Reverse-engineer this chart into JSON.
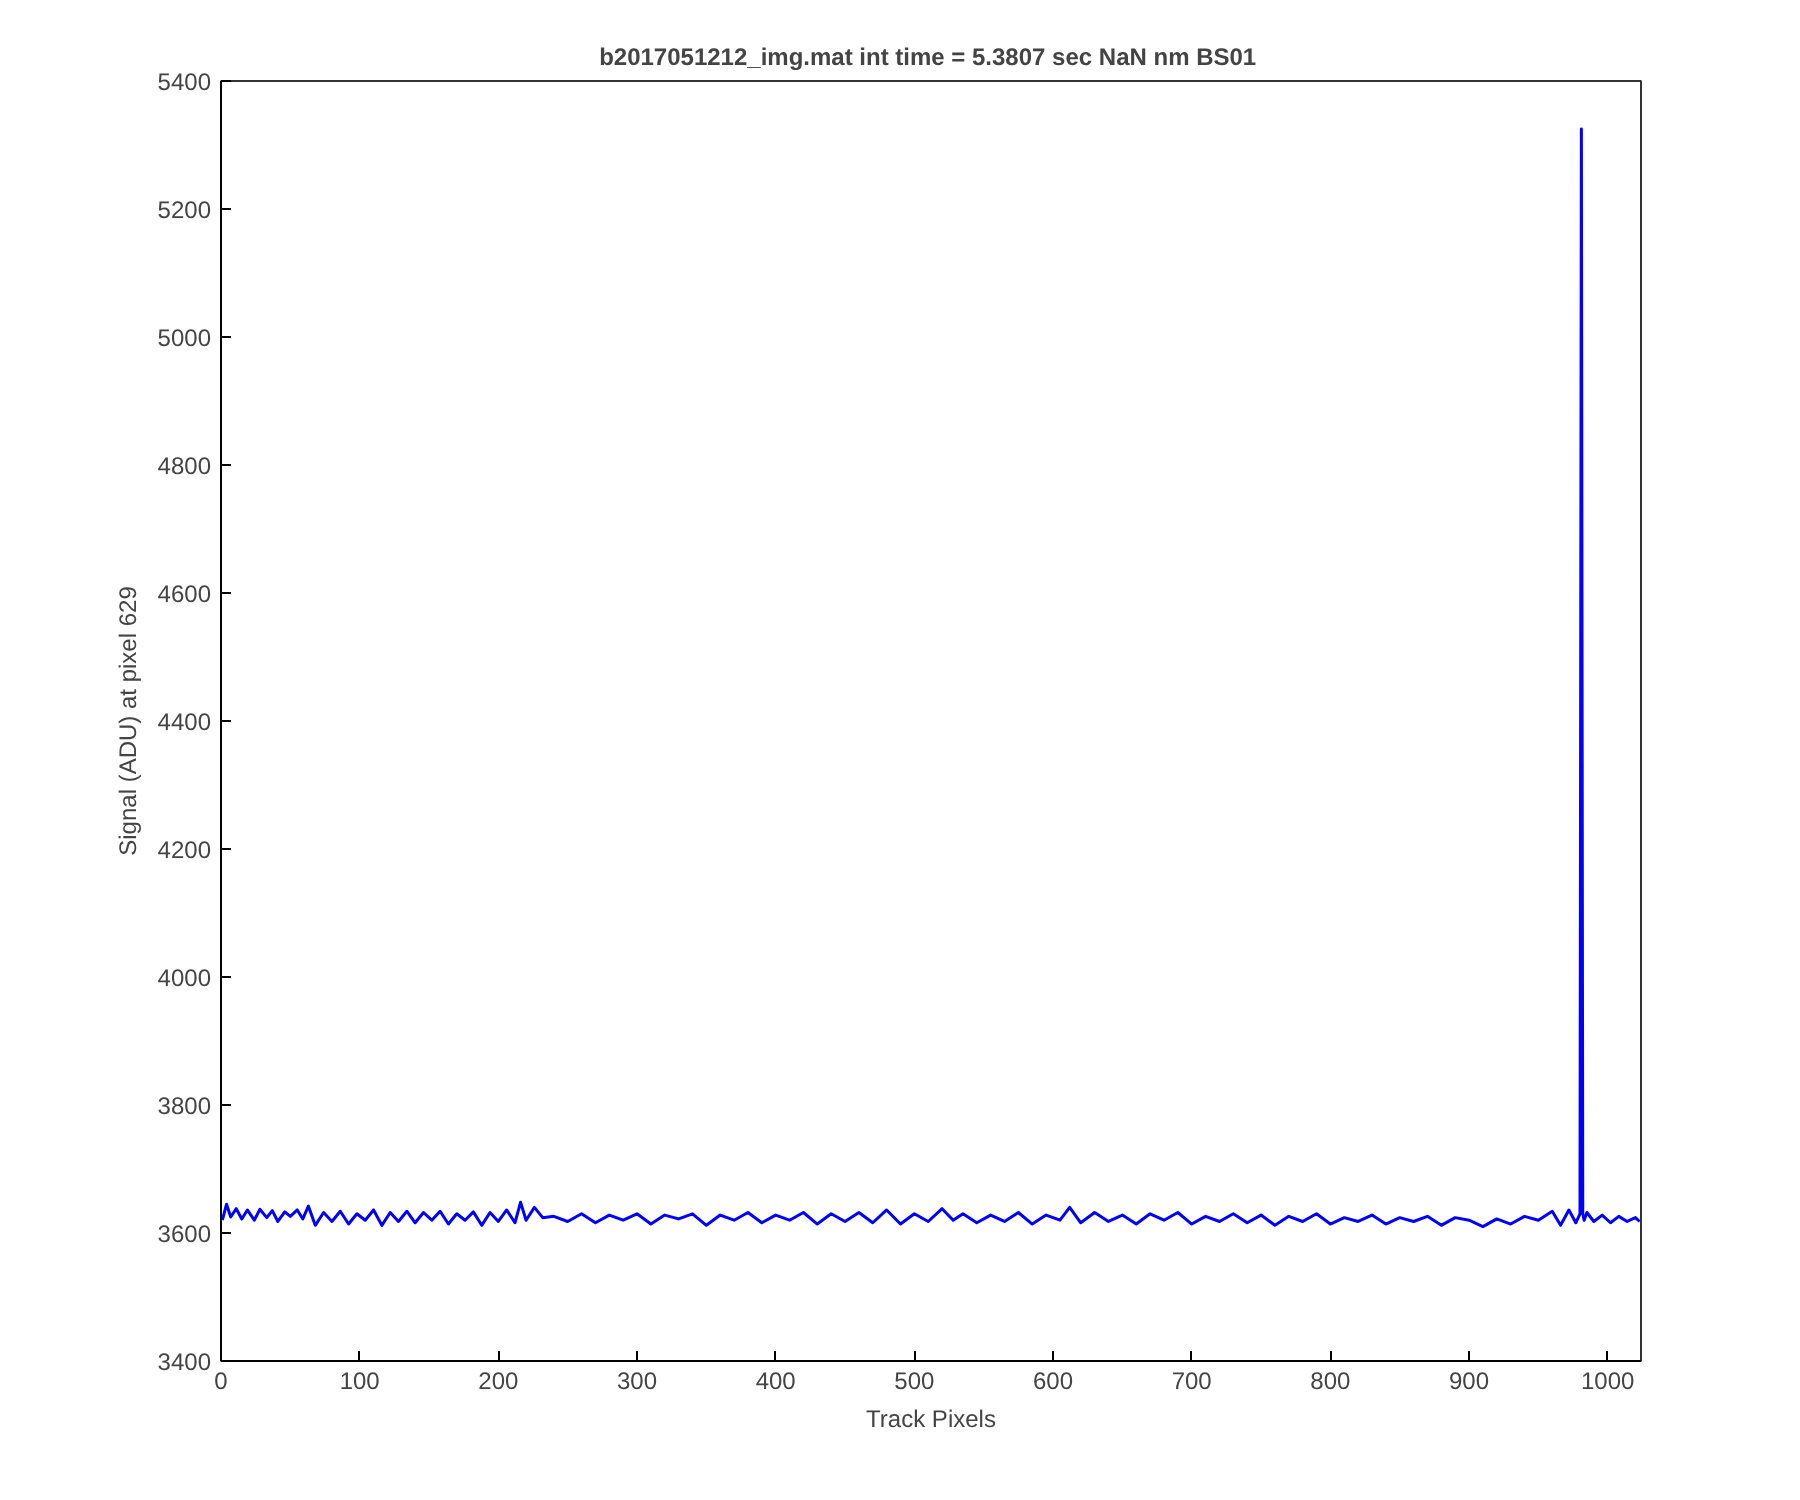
{
  "chart_data": {
    "type": "line",
    "title": "b2017051212_img.mat int time = 5.3807 sec  NaN nm BS01",
    "xlabel": "Track Pixels",
    "ylabel": "Signal (ADU) at pixel 629",
    "xlim": [
      0,
      1024
    ],
    "ylim": [
      3400,
      5400
    ],
    "xticks": [
      0,
      100,
      200,
      300,
      400,
      500,
      600,
      700,
      800,
      900,
      1000
    ],
    "yticks": [
      3400,
      3600,
      3800,
      4000,
      4200,
      4400,
      4600,
      4800,
      5000,
      5200,
      5400
    ],
    "grid": false,
    "marker": "none",
    "line_style": "solid",
    "series": [
      {
        "color": "#0000ff",
        "x": [
          1,
          4,
          7,
          11,
          15,
          19,
          24,
          28,
          33,
          37,
          41,
          46,
          50,
          55,
          59,
          63,
          68,
          74,
          80,
          86,
          92,
          98,
          104,
          110,
          116,
          122,
          128,
          134,
          140,
          146,
          152,
          158,
          164,
          170,
          176,
          182,
          188,
          194,
          200,
          206,
          212,
          216,
          220,
          226,
          232,
          240,
          250,
          260,
          270,
          280,
          290,
          300,
          310,
          320,
          330,
          340,
          350,
          360,
          370,
          380,
          390,
          400,
          410,
          420,
          430,
          440,
          450,
          460,
          470,
          480,
          490,
          500,
          510,
          520,
          528,
          535,
          545,
          555,
          565,
          575,
          585,
          595,
          605,
          612,
          620,
          630,
          640,
          650,
          660,
          670,
          680,
          690,
          700,
          710,
          720,
          730,
          740,
          750,
          760,
          770,
          780,
          790,
          800,
          810,
          820,
          830,
          840,
          850,
          860,
          870,
          880,
          890,
          900,
          910,
          920,
          930,
          940,
          950,
          960,
          966,
          972,
          977,
          980,
          981,
          982,
          983,
          985,
          990,
          996,
          1002,
          1008,
          1014,
          1020,
          1023
        ],
        "values": [
          3620,
          3645,
          3625,
          3638,
          3622,
          3636,
          3620,
          3637,
          3624,
          3635,
          3618,
          3633,
          3626,
          3636,
          3622,
          3642,
          3612,
          3632,
          3618,
          3634,
          3614,
          3630,
          3620,
          3636,
          3612,
          3632,
          3618,
          3634,
          3616,
          3632,
          3620,
          3634,
          3614,
          3630,
          3620,
          3633,
          3612,
          3632,
          3618,
          3636,
          3616,
          3648,
          3620,
          3640,
          3624,
          3626,
          3618,
          3630,
          3616,
          3628,
          3620,
          3630,
          3614,
          3628,
          3622,
          3630,
          3612,
          3628,
          3620,
          3632,
          3616,
          3628,
          3620,
          3632,
          3614,
          3630,
          3618,
          3632,
          3616,
          3636,
          3614,
          3630,
          3618,
          3638,
          3620,
          3630,
          3616,
          3628,
          3618,
          3632,
          3614,
          3628,
          3620,
          3640,
          3616,
          3632,
          3618,
          3628,
          3614,
          3630,
          3620,
          3632,
          3614,
          3626,
          3618,
          3630,
          3616,
          3628,
          3612,
          3626,
          3618,
          3630,
          3614,
          3624,
          3618,
          3628,
          3614,
          3624,
          3618,
          3626,
          3612,
          3624,
          3620,
          3610,
          3622,
          3614,
          3626,
          3620,
          3634,
          3612,
          3636,
          3616,
          3630,
          5325,
          3630,
          3620,
          3632,
          3618,
          3628,
          3616,
          3626,
          3618,
          3624,
          3618
        ]
      }
    ]
  }
}
